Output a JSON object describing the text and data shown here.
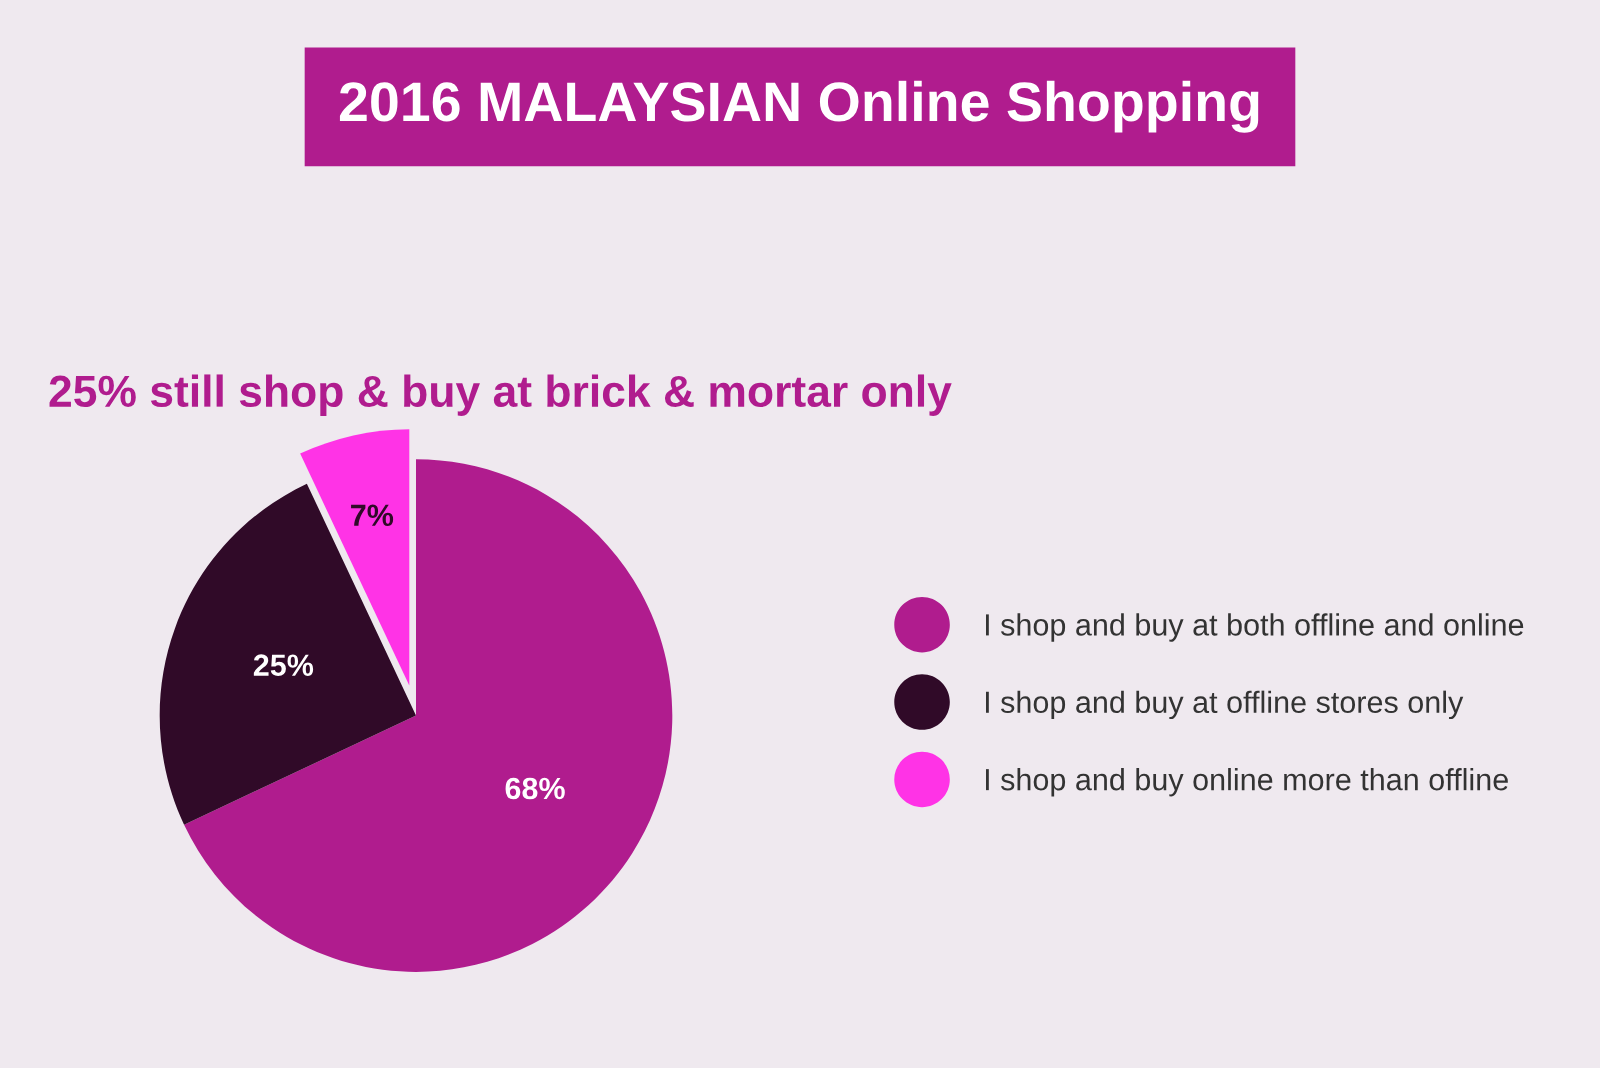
{
  "chart_data": {
    "type": "pie",
    "title": "2016 MALAYSIAN Online Shopping",
    "subtitle": "25% still shop & buy at brick & mortar only",
    "categories": [
      "I shop and buy at both offline and online",
      "I shop and buy at offline stores only",
      "I shop and buy online more than offline"
    ],
    "values": [
      68,
      25,
      7
    ],
    "colors": [
      "#b01c8e",
      "#300a28",
      "#ff33e6"
    ],
    "value_labels": [
      "68%",
      "25%",
      "7%"
    ],
    "legend": "right"
  }
}
